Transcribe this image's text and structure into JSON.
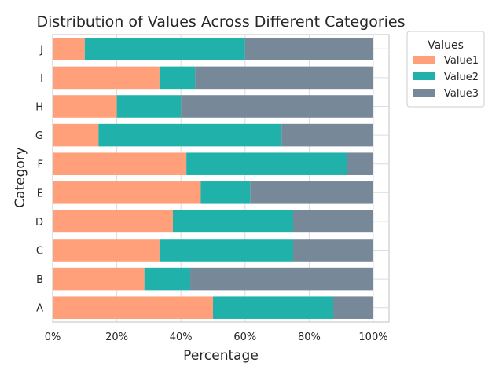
{
  "chart_data": {
    "type": "bar",
    "orientation": "horizontal",
    "stacked": true,
    "title": "Distribution of Values Across Different Categories",
    "xlabel": "Percentage",
    "ylabel": "Category",
    "xlim": [
      0,
      100
    ],
    "x_ticks": [
      "0%",
      "20%",
      "40%",
      "60%",
      "80%",
      "100%"
    ],
    "categories": [
      "A",
      "B",
      "C",
      "D",
      "E",
      "F",
      "G",
      "H",
      "I",
      "J"
    ],
    "series": [
      {
        "name": "Value1",
        "color": "#ffa07a",
        "values": [
          50,
          28.6,
          33.3,
          37.5,
          46.2,
          41.7,
          14.3,
          20,
          33.3,
          10
        ]
      },
      {
        "name": "Value2",
        "color": "#20b2aa",
        "values": [
          37.5,
          14.3,
          41.7,
          37.5,
          15.4,
          50,
          57.1,
          20,
          11.1,
          50
        ]
      },
      {
        "name": "Value3",
        "color": "#778899",
        "values": [
          12.5,
          57.1,
          25,
          25,
          38.4,
          8.3,
          28.6,
          60,
          55.6,
          40
        ]
      }
    ],
    "legend": {
      "title": "Values",
      "position": "outside-top-right"
    },
    "grid": true
  }
}
